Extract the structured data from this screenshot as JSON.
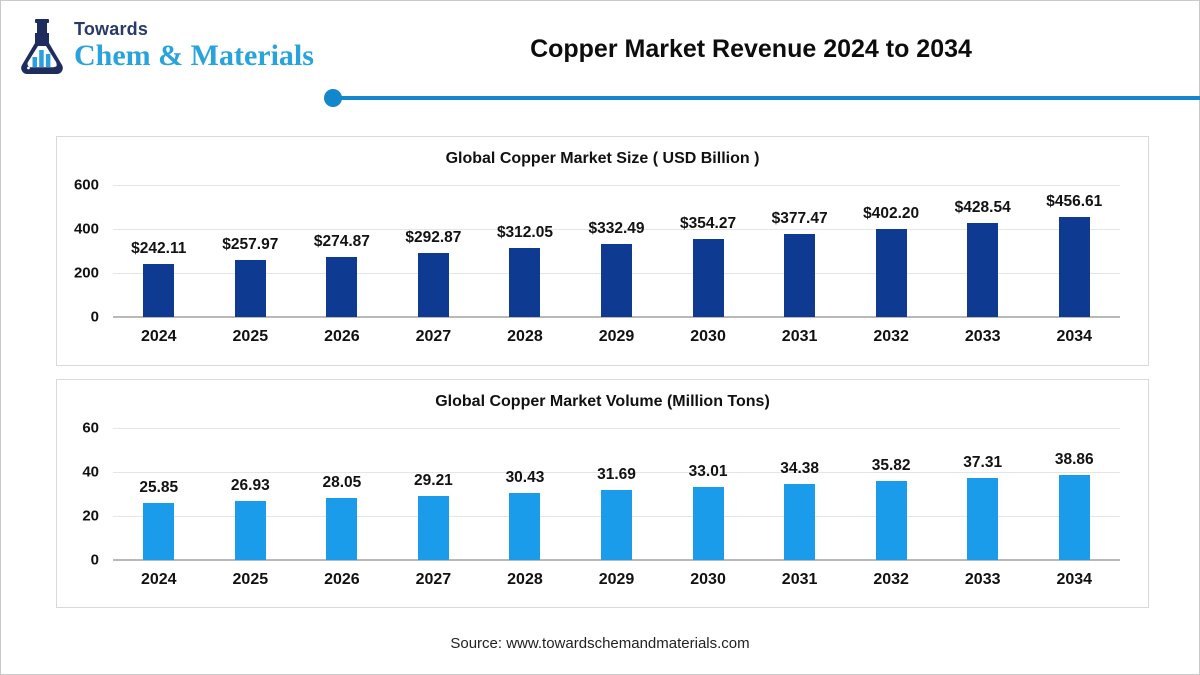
{
  "logo": {
    "top_text": "Towards",
    "bottom_text": "Chem & Materials",
    "top_color": "#2a3a68",
    "bottom_color": "#29a3dc",
    "flask_color": "#1e2d5e",
    "flask_bar_color": "#2aa0df"
  },
  "header": {
    "title": "Copper Market Revenue 2024 to 2034",
    "divider_color": "#1387cb"
  },
  "footer": {
    "source_text": "Source: www.towardschemandmaterials.com"
  },
  "chart_data": [
    {
      "type": "bar",
      "title": "Global Copper Market Size ( USD Billion )",
      "categories": [
        "2024",
        "2025",
        "2026",
        "2027",
        "2028",
        "2029",
        "2030",
        "2031",
        "2032",
        "2033",
        "2034"
      ],
      "values": [
        242.11,
        257.97,
        274.87,
        292.87,
        312.05,
        332.49,
        354.27,
        377.47,
        402.2,
        428.54,
        456.61
      ],
      "labels": [
        "$242.11",
        "$257.97",
        "$274.87",
        "$292.87",
        "$312.05",
        "$332.49",
        "$354.27",
        "$377.47",
        "$402.20",
        "$428.54",
        "$456.61"
      ],
      "bar_color": "#0e3b91",
      "ylim": [
        0,
        600
      ],
      "yticks": [
        0,
        200,
        400,
        600
      ],
      "grid": true,
      "legend": "none",
      "xlabel": "",
      "ylabel": ""
    },
    {
      "type": "bar",
      "title": "Global Copper Market Volume (Million Tons)",
      "categories": [
        "2024",
        "2025",
        "2026",
        "2027",
        "2028",
        "2029",
        "2030",
        "2031",
        "2032",
        "2033",
        "2034"
      ],
      "values": [
        25.85,
        26.93,
        28.05,
        29.21,
        30.43,
        31.69,
        33.01,
        34.38,
        35.82,
        37.31,
        38.86
      ],
      "labels": [
        "25.85",
        "26.93",
        "28.05",
        "29.21",
        "30.43",
        "31.69",
        "33.01",
        "34.38",
        "35.82",
        "37.31",
        "38.86"
      ],
      "bar_color": "#1b9ceb",
      "ylim": [
        0,
        60
      ],
      "yticks": [
        0,
        20,
        40,
        60
      ],
      "grid": true,
      "legend": "none",
      "xlabel": "",
      "ylabel": ""
    }
  ]
}
